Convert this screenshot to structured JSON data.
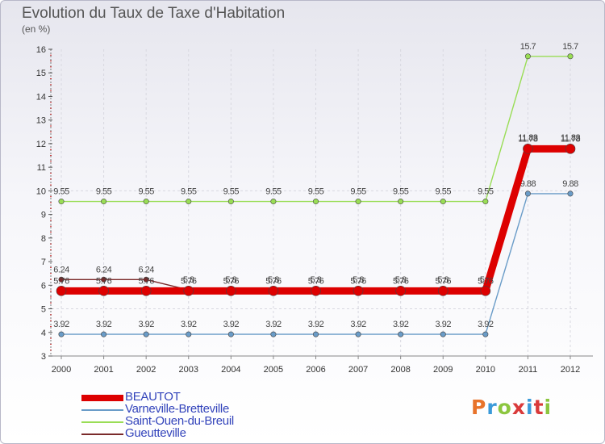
{
  "page": {
    "title": "Evolution du Taux de Taxe d'Habitation",
    "subtitle": "(en %)"
  },
  "brand": {
    "logo_text": "Proxiti",
    "logo_colors": [
      "#e8732a",
      "#3a9ad9",
      "#8cc63f",
      "#d93a3a",
      "#3a9ad9",
      "#d93a3a",
      "#8cc63f"
    ]
  },
  "chart_data": {
    "type": "line",
    "title": "Evolution du Taux de Taxe d'Habitation",
    "ylabel": "(en %)",
    "xlabel": "",
    "x": [
      "2000",
      "2001",
      "2002",
      "2003",
      "2004",
      "2005",
      "2006",
      "2007",
      "2008",
      "2009",
      "2010",
      "2011",
      "2012"
    ],
    "ylim": [
      3,
      16
    ],
    "yticks": [
      3,
      4,
      5,
      6,
      7,
      8,
      9,
      10,
      11,
      12,
      13,
      14,
      15,
      16
    ],
    "series": [
      {
        "name": "Gueutteville",
        "color": "#7a2a2a",
        "values": [
          6.24,
          6.24,
          6.24,
          5.8,
          5.8,
          5.8,
          5.8,
          5.8,
          5.8,
          5.8,
          5.8,
          11.83,
          11.83
        ],
        "labels": [
          "6.24",
          "6.24",
          "6.24",
          "5.8",
          "5.8",
          "5.8",
          "5.8",
          "5.8",
          "5.8",
          "5.8",
          "5.8",
          "11.83",
          "11.83"
        ]
      },
      {
        "name": "Varneville-Bretteville",
        "color": "#6a9cc8",
        "values": [
          3.92,
          3.92,
          3.92,
          3.92,
          3.92,
          3.92,
          3.92,
          3.92,
          3.92,
          3.92,
          3.92,
          9.88,
          9.88
        ],
        "labels": [
          "3.92",
          "3.92",
          "3.92",
          "3.92",
          "3.92",
          "3.92",
          "3.92",
          "3.92",
          "3.92",
          "3.92",
          "3.92",
          "9.88",
          "9.88"
        ]
      },
      {
        "name": "Saint-Ouen-du-Breuil",
        "color": "#99dd55",
        "values": [
          9.55,
          9.55,
          9.55,
          9.55,
          9.55,
          9.55,
          9.55,
          9.55,
          9.55,
          9.55,
          9.55,
          15.7,
          15.7
        ],
        "labels": [
          "9.55",
          "9.55",
          "9.55",
          "9.55",
          "9.55",
          "9.55",
          "9.55",
          "9.55",
          "9.55",
          "9.55",
          "9.55",
          "15.7",
          "15.7"
        ]
      },
      {
        "name": "BEAUTOT",
        "color": "#dd0000",
        "values": [
          5.76,
          5.76,
          5.76,
          5.76,
          5.76,
          5.76,
          5.76,
          5.76,
          5.76,
          5.76,
          5.76,
          11.78,
          11.78
        ],
        "labels": [
          "5.76",
          "5.76",
          "5.76",
          "5.76",
          "5.76",
          "5.76",
          "5.76",
          "5.76",
          "5.76",
          "5.76",
          "5.76",
          "11.78",
          "11.78"
        ]
      }
    ],
    "legend": [
      "BEAUTOT",
      "Varneville-Bretteville",
      "Saint-Ouen-du-Breuil",
      "Gueutteville"
    ],
    "legend_colors": [
      "#dd0000",
      "#6a9cc8",
      "#99dd55",
      "#7a2a2a"
    ],
    "legend_position": "bottom-left"
  }
}
